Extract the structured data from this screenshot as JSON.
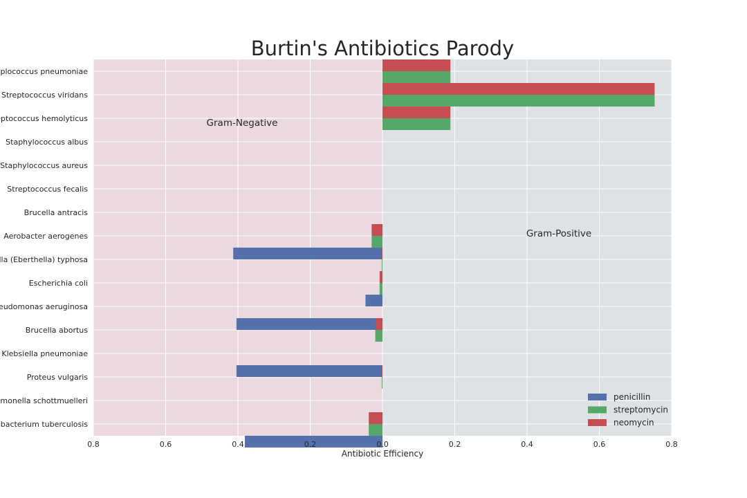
{
  "chart_data": {
    "type": "bar",
    "orientation": "horizontal",
    "title": "Burtin's Antibiotics Parody",
    "xlabel": "Antibiotic Efficiency",
    "ylabel": "",
    "xlim": [
      -0.8,
      0.8
    ],
    "x_tick_values": [
      -0.8,
      -0.6,
      -0.4,
      -0.2,
      0.0,
      0.2,
      0.4,
      0.6,
      0.8
    ],
    "x_tick_labels": [
      "0.8",
      "0.6",
      "0.4",
      "0.2",
      "0.0",
      "0.2",
      "0.4",
      "0.6",
      "0.8"
    ],
    "grid": true,
    "legend_position": "lower-right",
    "regions": [
      {
        "label": "Gram-Negative",
        "x_range": [
          -0.8,
          0.0
        ],
        "color": "#ead9e1"
      },
      {
        "label": "Gram-Positive",
        "x_range": [
          0.0,
          0.8
        ],
        "color": "#dfe2e4"
      }
    ],
    "categories": [
      "Diplococcus pneumoniae",
      "Streptococcus viridans",
      "Streptococcus hemolyticus",
      "Staphylococcus albus",
      "Staphylococcus aureus",
      "Streptococcus fecalis",
      "Brucella antracis",
      "Aerobacter aerogenes",
      "Salmonella (Eberthella) typhosa",
      "Escherichia coli",
      "Pseudomonas aeruginosa",
      "Brucella abortus",
      "Klebsiella pneumoniae",
      "Proteus vulgaris",
      "Salmonella schottmuelleri",
      "Mycobacterium tuberculosis"
    ],
    "series": [
      {
        "name": "penicillin",
        "color": "#5471ab",
        "values": [
          0,
          0,
          0,
          0,
          0,
          0,
          0,
          -0.413,
          0,
          -0.047,
          -0.404,
          0,
          -0.404,
          0,
          0,
          -0.381
        ]
      },
      {
        "name": "streptomycin",
        "color": "#55a868",
        "values": [
          0.188,
          0.753,
          0.188,
          0,
          0,
          0,
          0,
          -0.03,
          -0.002,
          -0.008,
          0,
          -0.02,
          0,
          -0.002,
          0,
          -0.038
        ]
      },
      {
        "name": "neomycin",
        "color": "#c44e52",
        "values": [
          0.188,
          0.753,
          0.188,
          0,
          0,
          0,
          0,
          -0.03,
          -0.002,
          -0.008,
          0,
          -0.018,
          0,
          -0.002,
          0,
          -0.038
        ]
      }
    ]
  }
}
